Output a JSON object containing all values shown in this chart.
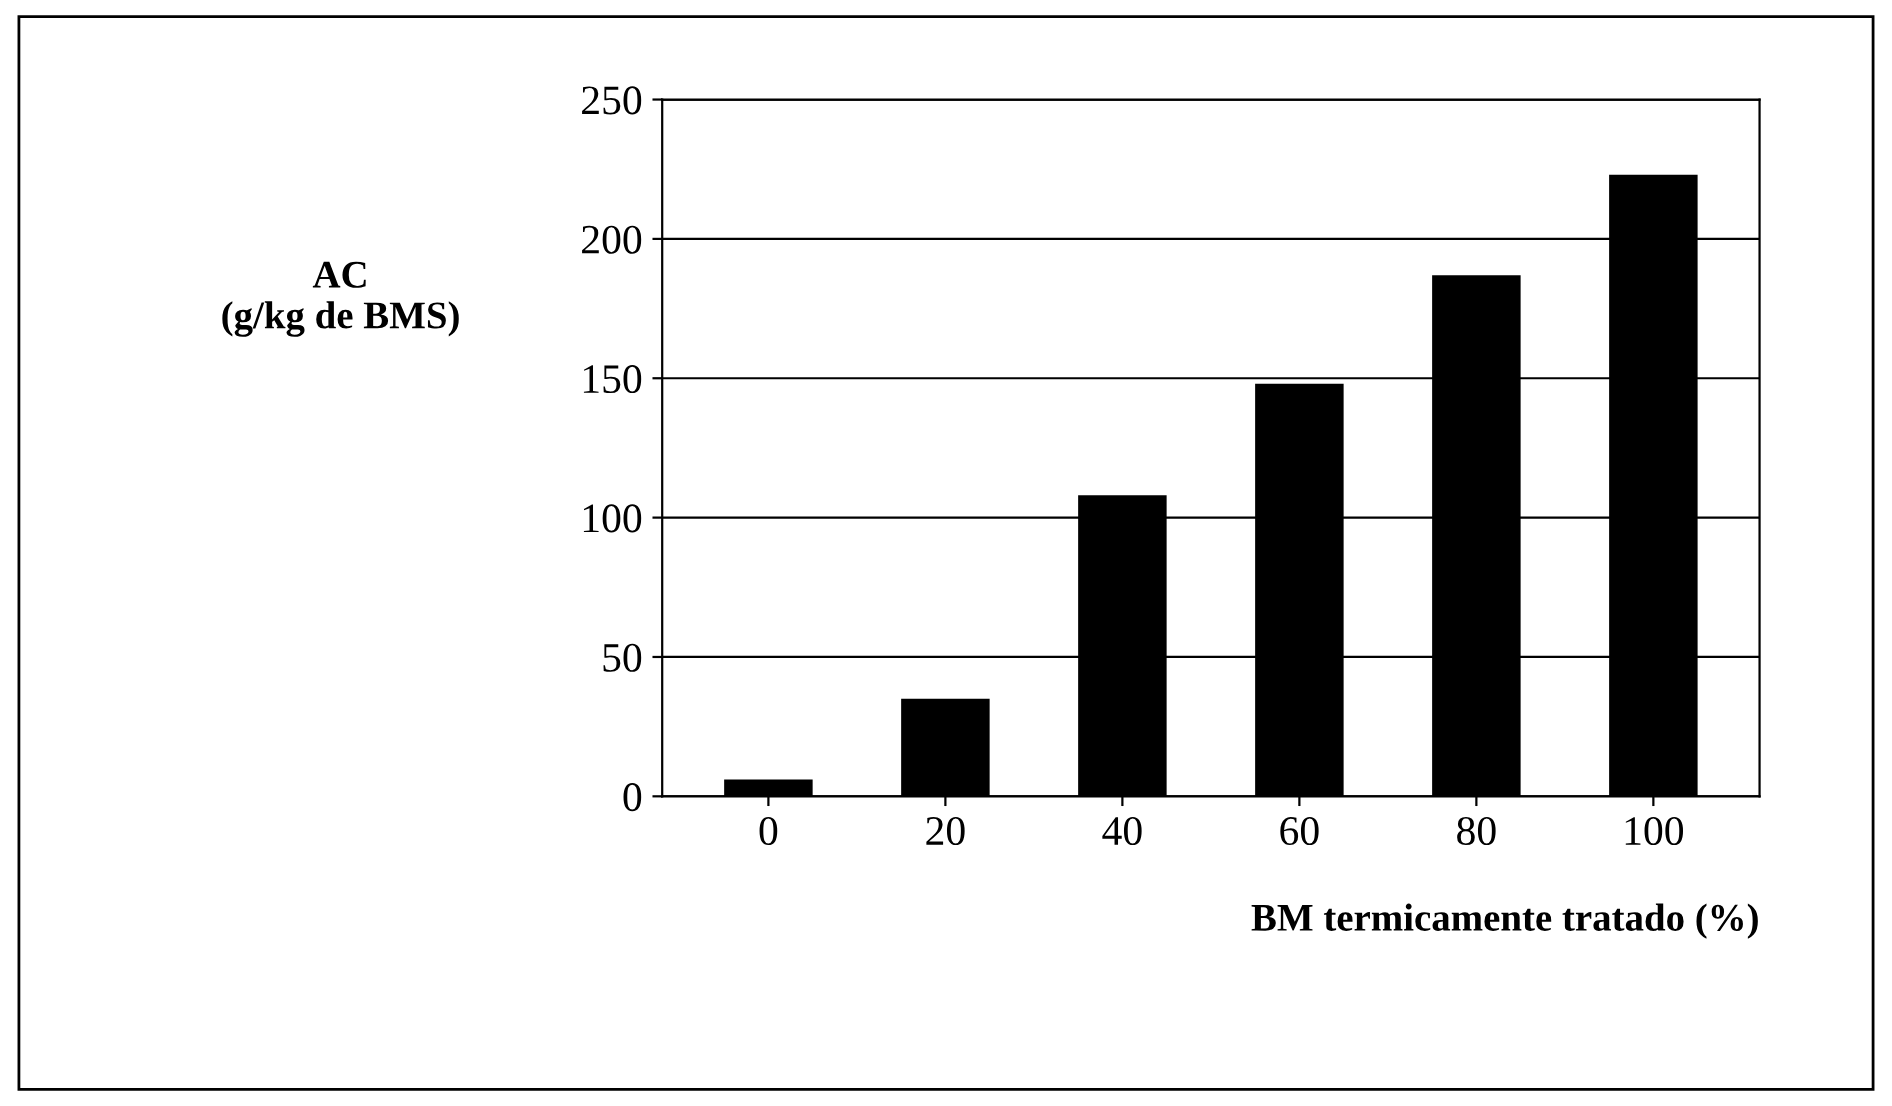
{
  "chart_data": {
    "type": "bar",
    "ylabel": "AC\n(g/kg de BMS)",
    "xlabel": "BM termicamente tratado (%)",
    "categories": [
      "0",
      "20",
      "40",
      "60",
      "80",
      "100"
    ],
    "values": [
      6,
      35,
      108,
      148,
      187,
      223
    ],
    "color": "#000000",
    "ylim": [
      0,
      250
    ],
    "yticks": [
      0,
      50,
      100,
      150,
      200,
      250
    ],
    "grid": "y"
  }
}
